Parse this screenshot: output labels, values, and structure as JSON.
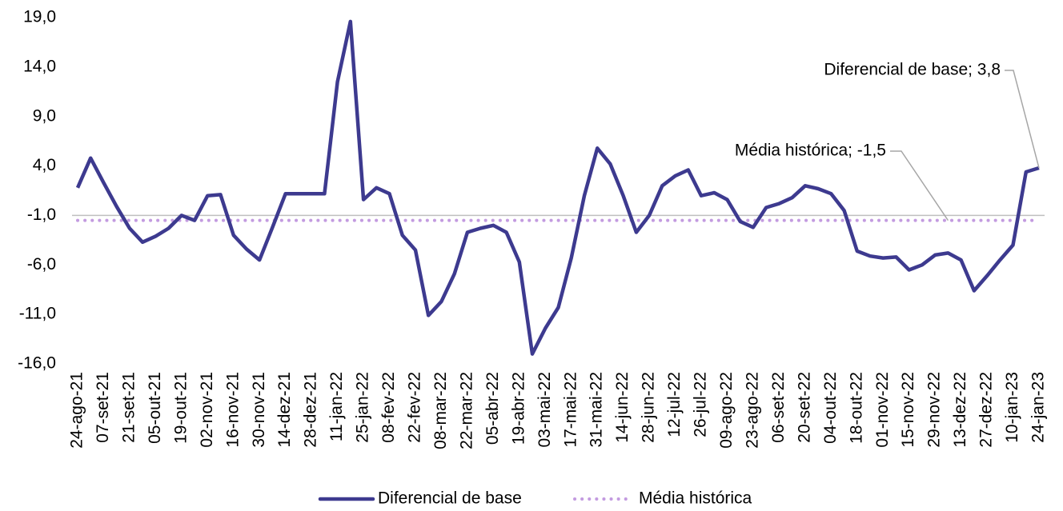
{
  "chart_data": {
    "type": "line",
    "categories": [
      "24-ago-21",
      null,
      "07-set-21",
      null,
      "21-set-21",
      null,
      "05-out-21",
      null,
      "19-out-21",
      null,
      "02-nov-21",
      null,
      "16-nov-21",
      null,
      "30-nov-21",
      null,
      "14-dez-21",
      null,
      "28-dez-21",
      null,
      "11-jan-22",
      null,
      "25-jan-22",
      null,
      "08-fev-22",
      null,
      "22-fev-22",
      null,
      "08-mar-22",
      null,
      "22-mar-22",
      null,
      "05-abr-22",
      null,
      "19-abr-22",
      null,
      "03-mai-22",
      null,
      "17-mai-22",
      null,
      "31-mai-22",
      null,
      "14-jun-22",
      null,
      "28-jun-22",
      null,
      "12-jul-22",
      null,
      "26-jul-22",
      null,
      "09-ago-22",
      null,
      "23-ago-22",
      null,
      "06-set-22",
      null,
      "20-set-22",
      null,
      "04-out-22",
      null,
      "18-out-22",
      null,
      "01-nov-22",
      null,
      "15-nov-22",
      null,
      "29-nov-22",
      null,
      "13-dez-22",
      null,
      "27-dez-22",
      null,
      "10-jan-23",
      null,
      "24-jan-23"
    ],
    "series": [
      {
        "name": "Diferencial de base",
        "color": "#3d3a8f",
        "style": "solid",
        "values": [
          1.8,
          4.8,
          2.3,
          -0.1,
          -2.3,
          -3.7,
          -3.1,
          -2.3,
          -1.0,
          -1.5,
          1.0,
          1.1,
          -3.0,
          -4.4,
          -5.5,
          -2.2,
          1.2,
          1.2,
          1.2,
          1.2,
          12.5,
          18.6,
          0.6,
          1.8,
          1.2,
          -3.0,
          -4.5,
          -11.1,
          -9.7,
          -6.9,
          -2.7,
          -2.3,
          -2.0,
          -2.7,
          -5.7,
          -15.0,
          -12.4,
          -10.3,
          -5.3,
          1.0,
          5.8,
          4.2,
          1.0,
          -2.7,
          -1.0,
          2.0,
          3.0,
          3.6,
          1.0,
          1.3,
          0.6,
          -1.6,
          -2.2,
          -0.2,
          0.2,
          0.8,
          2.0,
          1.7,
          1.2,
          -0.5,
          -4.6,
          -5.1,
          -5.3,
          -5.2,
          -6.5,
          -6.0,
          -5.0,
          -4.8,
          -5.5,
          -8.6,
          -7.1,
          -5.5,
          -4.0,
          3.4,
          3.8
        ]
      },
      {
        "name": "Média histórica",
        "color": "#c39be0",
        "style": "dotted",
        "values": [
          -1.5,
          -1.5,
          -1.5,
          -1.5,
          -1.5,
          -1.5,
          -1.5,
          -1.5,
          -1.5,
          -1.5,
          -1.5,
          -1.5,
          -1.5,
          -1.5,
          -1.5,
          -1.5,
          -1.5,
          -1.5,
          -1.5,
          -1.5,
          -1.5,
          -1.5,
          -1.5,
          -1.5,
          -1.5,
          -1.5,
          -1.5,
          -1.5,
          -1.5,
          -1.5,
          -1.5,
          -1.5,
          -1.5,
          -1.5,
          -1.5,
          -1.5,
          -1.5,
          -1.5,
          -1.5,
          -1.5,
          -1.5,
          -1.5,
          -1.5,
          -1.5,
          -1.5,
          -1.5,
          -1.5,
          -1.5,
          -1.5,
          -1.5,
          -1.5,
          -1.5,
          -1.5,
          -1.5,
          -1.5,
          -1.5,
          -1.5,
          -1.5,
          -1.5,
          -1.5,
          -1.5,
          -1.5,
          -1.5,
          -1.5,
          -1.5,
          -1.5,
          -1.5,
          -1.5,
          -1.5,
          -1.5,
          -1.5,
          -1.5,
          -1.5,
          -1.5,
          -1.5
        ]
      }
    ],
    "annotations": [
      "Diferencial de base; 3,8",
      "Média histórica; -1,5"
    ],
    "ylim": [
      -16,
      19
    ],
    "yticks": [
      {
        "value": -16,
        "label": "-16,0"
      },
      {
        "value": -11,
        "label": "-11,0"
      },
      {
        "value": -6,
        "label": "-6,0"
      },
      {
        "value": -1,
        "label": "-1,0"
      },
      {
        "value": 4,
        "label": "4,0"
      },
      {
        "value": 9,
        "label": "9,0"
      },
      {
        "value": 14,
        "label": "14,0"
      },
      {
        "value": 19,
        "label": "19,0"
      }
    ],
    "axis_crosses_at": -1,
    "legend": "bottom"
  }
}
